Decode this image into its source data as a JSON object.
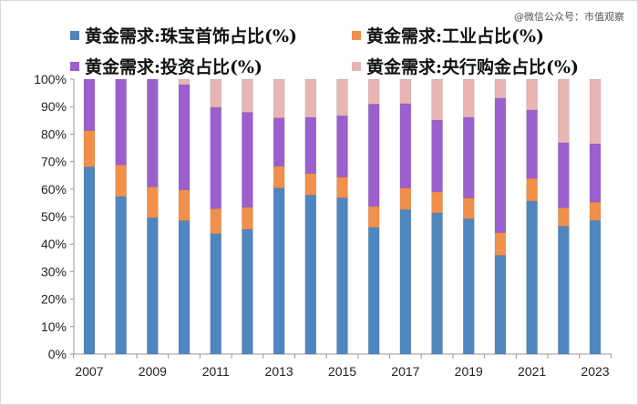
{
  "watermark": "@微信公众号：市值观察",
  "chart_data": {
    "type": "bar",
    "stacked": "percent",
    "categories": [
      "2007",
      "2008",
      "2009",
      "2010",
      "2011",
      "2012",
      "2013",
      "2014",
      "2015",
      "2016",
      "2017",
      "2018",
      "2019",
      "2020",
      "2021",
      "2022",
      "2023"
    ],
    "x_tick_labels": [
      "2007",
      "2009",
      "2011",
      "2013",
      "2015",
      "2017",
      "2019",
      "2021",
      "2023"
    ],
    "y_tick_labels": [
      "0%",
      "10%",
      "20%",
      "30%",
      "40%",
      "50%",
      "60%",
      "70%",
      "80%",
      "90%",
      "100%"
    ],
    "ylim": [
      0,
      100
    ],
    "grid": false,
    "legend_position": "top",
    "series": [
      {
        "name": "黄金需求:珠宝首饰占比(%)",
        "color": "#4f86c0",
        "values": [
          68.1,
          57.3,
          49.6,
          48.5,
          43.8,
          45.4,
          60.4,
          57.8,
          56.8,
          46.1,
          52.6,
          51.3,
          49.2,
          35.9,
          55.7,
          46.5,
          48.6
        ]
      },
      {
        "name": "黄金需求:工业占比(%)",
        "color": "#f0904a",
        "values": [
          13.2,
          11.5,
          11.2,
          11.2,
          9.1,
          8.0,
          7.9,
          7.9,
          7.6,
          7.6,
          7.8,
          7.7,
          7.6,
          8.3,
          8.2,
          6.7,
          6.7
        ]
      },
      {
        "name": "黄金需求:投资占比(%)",
        "color": "#9b5fce",
        "values": [
          18.7,
          31.2,
          39.2,
          38.3,
          36.9,
          34.5,
          17.6,
          20.4,
          22.3,
          37.2,
          30.7,
          26.1,
          29.3,
          48.9,
          24.9,
          23.7,
          21.2
        ]
      },
      {
        "name": "黄金需求:央行购金占比(%)",
        "color": "#e8b4b4",
        "values": [
          0,
          0,
          0,
          2.0,
          10.2,
          12.1,
          14.1,
          13.9,
          13.3,
          9.1,
          8.9,
          14.9,
          13.9,
          6.9,
          11.2,
          23.1,
          23.5
        ]
      }
    ]
  }
}
